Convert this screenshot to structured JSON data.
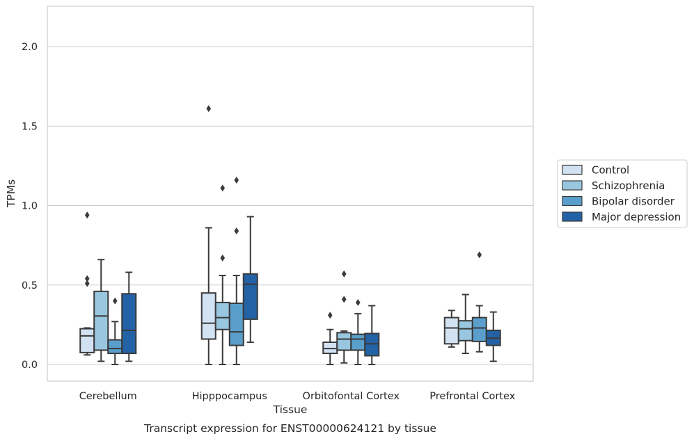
{
  "chart_data": {
    "type": "box",
    "title": "Transcript expression for ENST00000624121 by tissue",
    "xlabel": "Tissue",
    "ylabel": "TPMs",
    "ylim": [
      -0.1,
      2.26
    ],
    "yticks": [
      "0.0",
      "0.5",
      "1.0",
      "1.5",
      "2.0"
    ],
    "grid": true,
    "legend_position": "right",
    "categories": [
      "Cerebellum",
      "Hipppocampus",
      "Orbitofontal Cortex",
      "Prefrontal Cortex"
    ],
    "series": [
      {
        "name": "Control",
        "color": "#d3e2f3",
        "boxes": [
          {
            "whislo": 0.06,
            "q1": 0.075,
            "med": 0.18,
            "q3": 0.225,
            "whishi": 0.23,
            "fliers": [
              0.94,
              0.54,
              0.51
            ]
          },
          {
            "whislo": 0.0,
            "q1": 0.16,
            "med": 0.26,
            "q3": 0.45,
            "whishi": 0.86,
            "fliers": [
              1.61
            ]
          },
          {
            "whislo": 0.0,
            "q1": 0.07,
            "med": 0.1,
            "q3": 0.14,
            "whishi": 0.22,
            "fliers": [
              0.31
            ]
          },
          {
            "whislo": 0.11,
            "q1": 0.13,
            "med": 0.23,
            "q3": 0.295,
            "whishi": 0.34,
            "fliers": []
          }
        ]
      },
      {
        "name": "Schizophrenia",
        "color": "#9ac7e0",
        "boxes": [
          {
            "whislo": 0.02,
            "q1": 0.09,
            "med": 0.305,
            "q3": 0.46,
            "whishi": 0.66,
            "fliers": []
          },
          {
            "whislo": 0.0,
            "q1": 0.22,
            "med": 0.295,
            "q3": 0.39,
            "whishi": 0.56,
            "fliers": [
              1.11,
              0.67
            ]
          },
          {
            "whislo": 0.01,
            "q1": 0.09,
            "med": 0.16,
            "q3": 0.2,
            "whishi": 0.21,
            "fliers": [
              0.57,
              0.41
            ]
          },
          {
            "whislo": 0.07,
            "q1": 0.15,
            "med": 0.225,
            "q3": 0.275,
            "whishi": 0.44,
            "fliers": []
          }
        ]
      },
      {
        "name": "Bipolar disorder",
        "color": "#5a9fcc",
        "boxes": [
          {
            "whislo": 0.0,
            "q1": 0.07,
            "med": 0.1,
            "q3": 0.155,
            "whishi": 0.27,
            "fliers": [
              0.4
            ]
          },
          {
            "whislo": 0.0,
            "q1": 0.12,
            "med": 0.205,
            "q3": 0.385,
            "whishi": 0.56,
            "fliers": [
              1.16,
              0.84
            ]
          },
          {
            "whislo": 0.0,
            "q1": 0.09,
            "med": 0.16,
            "q3": 0.19,
            "whishi": 0.32,
            "fliers": [
              0.39
            ]
          },
          {
            "whislo": 0.08,
            "q1": 0.145,
            "med": 0.23,
            "q3": 0.295,
            "whishi": 0.37,
            "fliers": [
              0.69
            ]
          }
        ]
      },
      {
        "name": "Major depression",
        "color": "#2462a6",
        "boxes": [
          {
            "whislo": 0.02,
            "q1": 0.07,
            "med": 0.215,
            "q3": 0.445,
            "whishi": 0.58,
            "fliers": []
          },
          {
            "whislo": 0.14,
            "q1": 0.285,
            "med": 0.505,
            "q3": 0.57,
            "whishi": 0.93,
            "fliers": []
          },
          {
            "whislo": 0.0,
            "q1": 0.055,
            "med": 0.13,
            "q3": 0.195,
            "whishi": 0.37,
            "fliers": []
          },
          {
            "whislo": 0.02,
            "q1": 0.12,
            "med": 0.165,
            "q3": 0.215,
            "whishi": 0.33,
            "fliers": []
          }
        ]
      }
    ]
  }
}
